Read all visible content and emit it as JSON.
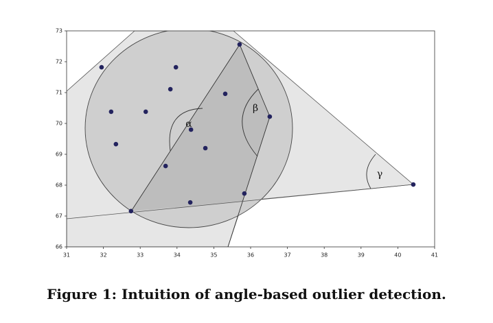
{
  "chart_data": {
    "type": "scatter",
    "x": [
      31.95,
      35.7,
      33.97,
      33.82,
      35.31,
      32.21,
      33.15,
      34.38,
      36.52,
      32.34,
      34.77,
      33.69,
      40.42,
      35.83,
      32.75,
      34.36
    ],
    "values": [
      71.82,
      72.56,
      71.82,
      71.11,
      70.96,
      70.38,
      70.38,
      69.8,
      70.22,
      69.33,
      69.2,
      68.62,
      68.02,
      67.73,
      67.16,
      67.44
    ],
    "color": "#23235e",
    "xlim": [
      31,
      41
    ],
    "ylim": [
      66,
      73
    ],
    "xticks": [
      31,
      32,
      33,
      34,
      35,
      36,
      37,
      38,
      39,
      40,
      41
    ],
    "yticks": [
      66,
      67,
      68,
      69,
      70,
      71,
      72,
      73
    ],
    "annotations": [
      "α",
      "β",
      "γ"
    ]
  },
  "caption": "Figure 1: Intuition of angle-based outlier detection."
}
